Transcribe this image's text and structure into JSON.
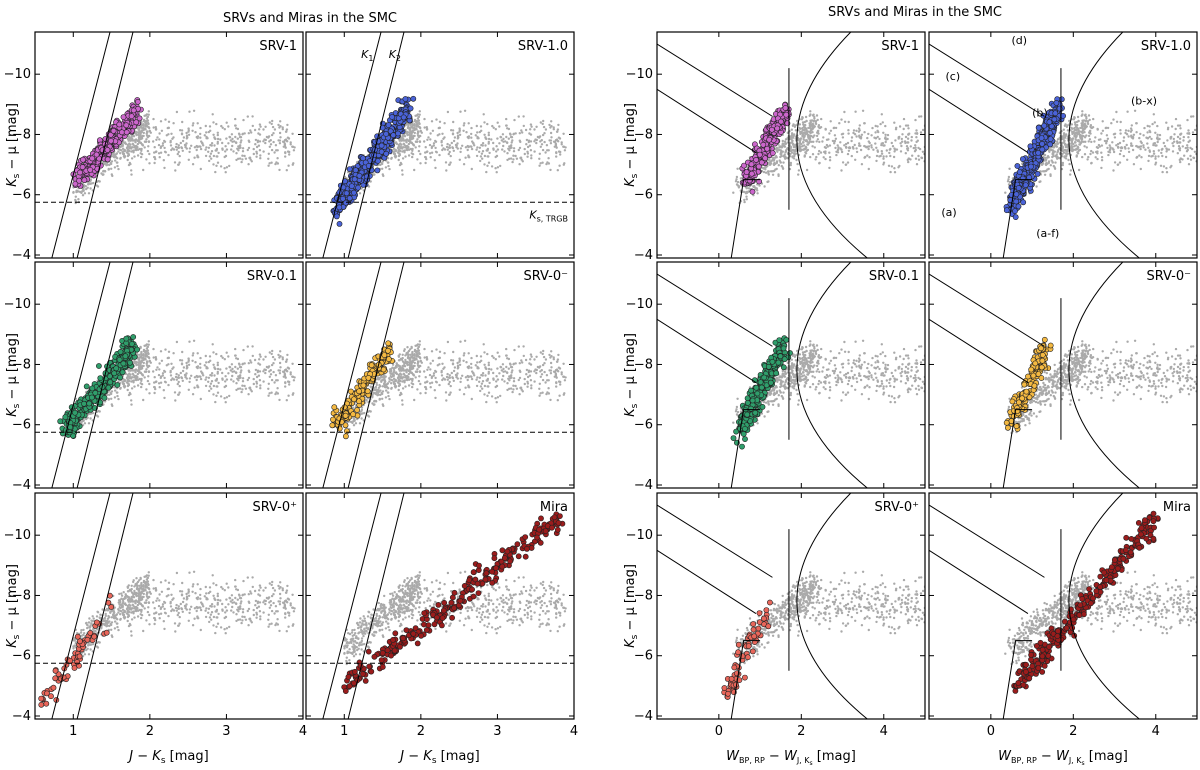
{
  "chart_data": [
    {
      "figure": "left",
      "type": "scatter",
      "title": "SRVs and Miras in the SMC",
      "xlabel": "J − K",
      "xlabel_sub": "s",
      "xlabel_unit": " [mag]",
      "ylabel": "K",
      "ylabel_sub": "s",
      "ylabel_unit": " − μ [mag]",
      "xlim": [
        0.5,
        4.0
      ],
      "ylim": [
        -3.9,
        -11.4
      ],
      "xticks": [
        1,
        2,
        3,
        4
      ],
      "yticks": [
        -4,
        -6,
        -8,
        -10
      ],
      "lines": {
        "K1": {
          "label": "K",
          "label_sub": "1",
          "points": [
            [
              0.72,
              -3.9
            ],
            [
              1.48,
              -11.4
            ]
          ]
        },
        "K2": {
          "label": "K",
          "label_sub": "2",
          "points": [
            [
              1.05,
              -3.9
            ],
            [
              1.78,
              -11.4
            ]
          ]
        },
        "TRGB": {
          "label": "K",
          "label_sub": "s, TRGB",
          "y": -5.75
        }
      },
      "panels": [
        {
          "label": "SRV-1",
          "color": "#cc66cc",
          "n": 320,
          "cluster": {
            "x": [
              1.05,
              1.85
            ],
            "y": [
              -6.5,
              -8.8
            ]
          }
        },
        {
          "label": "SRV-1.0",
          "color": "#4a63d8",
          "n": 650,
          "cluster": {
            "x": [
              0.9,
              1.85
            ],
            "y": [
              -5.6,
              -8.9
            ]
          }
        },
        {
          "label": "SRV-0.1",
          "color": "#2f9e6b",
          "n": 430,
          "cluster": {
            "x": [
              0.9,
              1.8
            ],
            "y": [
              -5.8,
              -8.6
            ]
          }
        },
        {
          "label": "SRV-0⁻",
          "color": "#f4b942",
          "n": 210,
          "cluster": {
            "x": [
              0.9,
              1.6
            ],
            "y": [
              -6.0,
              -8.5
            ]
          }
        },
        {
          "label": "SRV-0⁺",
          "color": "#e8665a",
          "n": 80,
          "cluster": {
            "x": [
              0.6,
              1.5
            ],
            "y": [
              -4.5,
              -7.6
            ]
          }
        },
        {
          "label": "Mira",
          "color": "#9b1c1c",
          "n": 340,
          "cluster": {
            "x": [
              1.0,
              3.8
            ],
            "y": [
              -5.0,
              -10.5
            ]
          }
        }
      ]
    },
    {
      "figure": "right",
      "type": "scatter",
      "title": "SRVs and Miras in the SMC",
      "xlabel": "W",
      "xlabel_sub": "BP, RP",
      "xlabel_mid": " − W",
      "xlabel_sub2": "J, K",
      "xlabel_sub3": "s",
      "xlabel_unit": " [mag]",
      "ylabel": "K",
      "ylabel_sub": "s",
      "ylabel_unit": " − μ [mag]",
      "xlim": [
        -1.5,
        5.0
      ],
      "ylim": [
        -3.9,
        -11.4
      ],
      "xticks": [
        0,
        2,
        4
      ],
      "yticks": [
        -4,
        -6,
        -8,
        -10
      ],
      "regions": [
        "(a)",
        "(a-f)",
        "(b)",
        "(b-x)",
        "(c)",
        "(d)"
      ],
      "panels": [
        {
          "label": "SRV-1",
          "color": "#cc66cc"
        },
        {
          "label": "SRV-1.0",
          "color": "#4a63d8"
        },
        {
          "label": "SRV-0.1",
          "color": "#2f9e6b"
        },
        {
          "label": "SRV-0⁻",
          "color": "#f4b942"
        },
        {
          "label": "SRV-0⁺",
          "color": "#e8665a"
        },
        {
          "label": "Mira",
          "color": "#9b1c1c"
        }
      ]
    }
  ]
}
